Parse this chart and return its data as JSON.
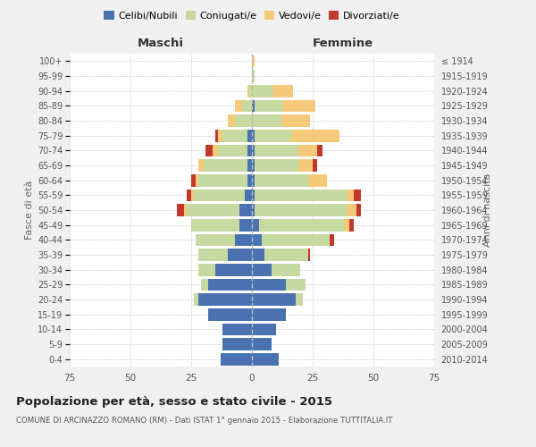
{
  "age_groups": [
    "0-4",
    "5-9",
    "10-14",
    "15-19",
    "20-24",
    "25-29",
    "30-34",
    "35-39",
    "40-44",
    "45-49",
    "50-54",
    "55-59",
    "60-64",
    "65-69",
    "70-74",
    "75-79",
    "80-84",
    "85-89",
    "90-94",
    "95-99",
    "100+"
  ],
  "birth_years": [
    "2010-2014",
    "2005-2009",
    "2000-2004",
    "1995-1999",
    "1990-1994",
    "1985-1989",
    "1980-1984",
    "1975-1979",
    "1970-1974",
    "1965-1969",
    "1960-1964",
    "1955-1959",
    "1950-1954",
    "1945-1949",
    "1940-1944",
    "1935-1939",
    "1930-1934",
    "1925-1929",
    "1920-1924",
    "1915-1919",
    "≤ 1914"
  ],
  "male": {
    "celibe": [
      13,
      12,
      12,
      18,
      22,
      18,
      15,
      10,
      7,
      5,
      5,
      3,
      2,
      2,
      2,
      2,
      0,
      0,
      0,
      0,
      0
    ],
    "coniugato": [
      0,
      0,
      0,
      0,
      2,
      3,
      7,
      12,
      16,
      20,
      22,
      21,
      20,
      18,
      12,
      10,
      7,
      4,
      1,
      0,
      0
    ],
    "vedovo": [
      0,
      0,
      0,
      0,
      0,
      0,
      0,
      0,
      0,
      0,
      1,
      1,
      1,
      2,
      2,
      2,
      3,
      3,
      1,
      0,
      0
    ],
    "divorziato": [
      0,
      0,
      0,
      0,
      0,
      0,
      0,
      0,
      0,
      0,
      3,
      2,
      2,
      0,
      3,
      1,
      0,
      0,
      0,
      0,
      0
    ]
  },
  "female": {
    "nubile": [
      11,
      8,
      10,
      14,
      18,
      14,
      8,
      5,
      4,
      3,
      1,
      1,
      1,
      1,
      1,
      1,
      0,
      1,
      0,
      0,
      0
    ],
    "coniugata": [
      0,
      0,
      0,
      0,
      3,
      8,
      12,
      18,
      28,
      35,
      38,
      38,
      22,
      18,
      18,
      15,
      12,
      12,
      9,
      1,
      0
    ],
    "vedova": [
      0,
      0,
      0,
      0,
      0,
      0,
      0,
      0,
      0,
      2,
      4,
      3,
      8,
      6,
      8,
      20,
      12,
      13,
      8,
      0,
      1
    ],
    "divorziata": [
      0,
      0,
      0,
      0,
      0,
      0,
      0,
      1,
      2,
      2,
      2,
      3,
      0,
      2,
      2,
      0,
      0,
      0,
      0,
      0,
      0
    ]
  },
  "colors": {
    "celibe": "#4a72b0",
    "coniugato": "#c5d9a0",
    "vedovo": "#f5c97a",
    "divorziato": "#c0392b"
  },
  "xlim": 75,
  "title": "Popolazione per età, sesso e stato civile - 2015",
  "subtitle": "COMUNE DI ARCINAZZO ROMANO (RM) - Dati ISTAT 1° gennaio 2015 - Elaborazione TUTTITALIA.IT",
  "ylabel_left": "Fasce di età",
  "ylabel_right": "Anni di nascita",
  "xlabel_left": "Maschi",
  "xlabel_right": "Femmine",
  "legend_labels": [
    "Celibi/Nubili",
    "Coniugati/e",
    "Vedovi/e",
    "Divorziati/e"
  ],
  "bg_color": "#f0f0f0",
  "plot_bg_color": "#ffffff"
}
